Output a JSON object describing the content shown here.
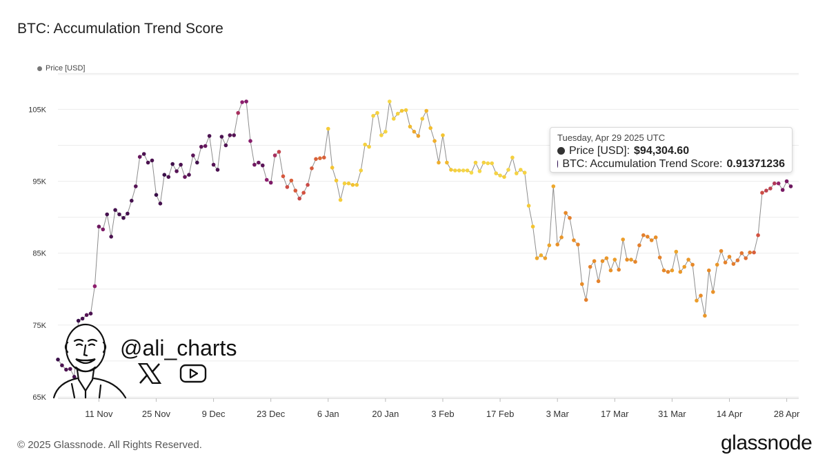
{
  "title": "BTC: Accumulation Trend Score",
  "legend": {
    "label": "Price [USD]",
    "color": "#777777"
  },
  "tooltip": {
    "date": "Tuesday, Apr 29 2025 UTC",
    "price_label": "Price [USD]:",
    "price_value": "$94,304.60",
    "price_color": "#333333",
    "score_label": "BTC: Accumulation Trend Score:",
    "score_value": "0.91371236",
    "score_color": "#2a0b4e"
  },
  "watermark": {
    "handle": "@ali_charts",
    "icons": [
      "x-logo-icon",
      "youtube-icon",
      "avatar-sketch"
    ]
  },
  "footer": {
    "copyright": "© 2025 Glassnode. All Rights Reserved.",
    "brand": "glassnode"
  },
  "colors": {
    "line": "#8c8c8c",
    "grid": "#ececec"
  },
  "chart_data": {
    "type": "scatter",
    "title": "BTC: Accumulation Trend Score",
    "y_ticks": [
      {
        "value": 65,
        "label": "65K"
      },
      {
        "value": 75,
        "label": "75K"
      },
      {
        "value": 85,
        "label": "85K"
      },
      {
        "value": 95,
        "label": "95K"
      },
      {
        "value": 105,
        "label": "105K"
      }
    ],
    "ylim": [
      65,
      106
    ],
    "x_ticks": [
      "11 Nov",
      "25 Nov",
      "9 Dec",
      "23 Dec",
      "6 Jan",
      "20 Jan",
      "3 Feb",
      "17 Feb",
      "3 Mar",
      "17 Mar",
      "31 Mar",
      "14 Apr",
      "28 Apr"
    ],
    "x_range": [
      "2025-11-01",
      "2025-04-30"
    ],
    "grid": true,
    "legend_position": "top-left",
    "series": [
      {
        "name": "Price [USD]",
        "x": [
          "2024-11-01",
          "2024-11-02",
          "2024-11-03",
          "2024-11-04",
          "2024-11-05",
          "2024-11-06",
          "2024-11-07",
          "2024-11-08",
          "2024-11-09",
          "2024-11-10",
          "2024-11-11",
          "2024-11-12",
          "2024-11-13",
          "2024-11-14",
          "2024-11-15",
          "2024-11-16",
          "2024-11-17",
          "2024-11-18",
          "2024-11-19",
          "2024-11-20",
          "2024-11-21",
          "2024-11-22",
          "2024-11-23",
          "2024-11-24",
          "2024-11-25",
          "2024-11-26",
          "2024-11-27",
          "2024-11-28",
          "2024-11-29",
          "2024-11-30",
          "2024-12-01",
          "2024-12-02",
          "2024-12-03",
          "2024-12-04",
          "2024-12-05",
          "2024-12-06",
          "2024-12-07",
          "2024-12-08",
          "2024-12-09",
          "2024-12-10",
          "2024-12-11",
          "2024-12-12",
          "2024-12-13",
          "2024-12-14",
          "2024-12-15",
          "2024-12-16",
          "2024-12-17",
          "2024-12-18",
          "2024-12-19",
          "2024-12-20",
          "2024-12-21",
          "2024-12-22",
          "2024-12-23",
          "2024-12-24",
          "2024-12-25",
          "2024-12-26",
          "2024-12-27",
          "2024-12-28",
          "2024-12-29",
          "2024-12-30",
          "2024-12-31",
          "2025-01-01",
          "2025-01-02",
          "2025-01-03",
          "2025-01-04",
          "2025-01-05",
          "2025-01-06",
          "2025-01-07",
          "2025-01-08",
          "2025-01-09",
          "2025-01-10",
          "2025-01-11",
          "2025-01-12",
          "2025-01-13",
          "2025-01-14",
          "2025-01-15",
          "2025-01-16",
          "2025-01-17",
          "2025-01-18",
          "2025-01-19",
          "2025-01-20",
          "2025-01-21",
          "2025-01-22",
          "2025-01-23",
          "2025-01-24",
          "2025-01-25",
          "2025-01-26",
          "2025-01-27",
          "2025-01-28",
          "2025-01-29",
          "2025-01-30",
          "2025-01-31",
          "2025-02-01",
          "2025-02-02",
          "2025-02-03",
          "2025-02-04",
          "2025-02-05",
          "2025-02-06",
          "2025-02-07",
          "2025-02-08",
          "2025-02-09",
          "2025-02-10",
          "2025-02-11",
          "2025-02-12",
          "2025-02-13",
          "2025-02-14",
          "2025-02-15",
          "2025-02-16",
          "2025-02-17",
          "2025-02-18",
          "2025-02-19",
          "2025-02-20",
          "2025-02-21",
          "2025-02-22",
          "2025-02-23",
          "2025-02-24",
          "2025-02-25",
          "2025-02-26",
          "2025-02-27",
          "2025-02-28",
          "2025-03-01",
          "2025-03-02",
          "2025-03-03",
          "2025-03-04",
          "2025-03-05",
          "2025-03-06",
          "2025-03-07",
          "2025-03-08",
          "2025-03-09",
          "2025-03-10",
          "2025-03-11",
          "2025-03-12",
          "2025-03-13",
          "2025-03-14",
          "2025-03-15",
          "2025-03-16",
          "2025-03-17",
          "2025-03-18",
          "2025-03-19",
          "2025-03-20",
          "2025-03-21",
          "2025-03-22",
          "2025-03-23",
          "2025-03-24",
          "2025-03-25",
          "2025-03-26",
          "2025-03-27",
          "2025-03-28",
          "2025-03-29",
          "2025-03-30",
          "2025-03-31",
          "2025-04-01",
          "2025-04-02",
          "2025-04-03",
          "2025-04-04",
          "2025-04-05",
          "2025-04-06",
          "2025-04-07",
          "2025-04-08",
          "2025-04-09",
          "2025-04-10",
          "2025-04-11",
          "2025-04-12",
          "2025-04-13",
          "2025-04-14",
          "2025-04-15",
          "2025-04-16",
          "2025-04-17",
          "2025-04-18",
          "2025-04-19",
          "2025-04-20",
          "2025-04-21",
          "2025-04-22",
          "2025-04-23",
          "2025-04-24",
          "2025-04-25",
          "2025-04-26",
          "2025-04-27",
          "2025-04-28",
          "2025-04-29"
        ],
        "y": [
          70.2,
          69.4,
          68.8,
          68.9,
          67.8,
          75.6,
          75.9,
          76.4,
          76.6,
          80.4,
          88.7,
          88.3,
          90.4,
          87.3,
          91.0,
          90.4,
          89.9,
          90.5,
          92.3,
          94.3,
          98.4,
          98.8,
          97.6,
          97.9,
          93.1,
          91.9,
          95.9,
          95.6,
          97.4,
          96.4,
          97.3,
          95.6,
          95.9,
          98.6,
          97.6,
          99.8,
          99.9,
          101.3,
          97.3,
          96.6,
          101.2,
          100.0,
          101.4,
          101.4,
          104.5,
          106.0,
          106.1,
          100.6,
          97.3,
          97.6,
          97.2,
          95.2,
          94.8,
          98.6,
          99.1,
          95.7,
          94.2,
          95.1,
          93.7,
          92.6,
          93.4,
          94.5,
          96.8,
          98.1,
          98.2,
          98.3,
          102.3,
          96.9,
          95.1,
          92.4,
          94.7,
          94.7,
          94.5,
          94.5,
          96.5,
          100.1,
          99.8,
          104.1,
          104.5,
          101.4,
          101.9,
          106.1,
          103.7,
          104.4,
          104.8,
          104.9,
          102.6,
          101.9,
          101.3,
          103.7,
          104.8,
          102.4,
          100.6,
          97.6,
          101.4,
          97.6,
          96.6,
          96.5,
          96.5,
          96.5,
          96.5,
          96.2,
          97.6,
          96.4,
          97.6,
          97.5,
          97.5,
          96.1,
          95.8,
          95.6,
          96.6,
          98.3,
          96.1,
          96.6,
          96.2,
          91.6,
          88.7,
          84.3,
          84.7,
          84.3,
          86.1,
          94.3,
          86.2,
          87.2,
          90.6,
          89.9,
          86.8,
          86.2,
          80.7,
          78.5,
          83.1,
          83.9,
          81.1,
          83.9,
          84.3,
          82.6,
          84.1,
          82.7,
          86.9,
          84.1,
          84.1,
          83.8,
          86.1,
          87.5,
          87.3,
          86.8,
          87.2,
          84.4,
          82.6,
          82.4,
          82.6,
          85.2,
          82.4,
          83.1,
          84.1,
          83.4,
          78.4,
          79.1,
          76.3,
          82.6,
          79.6,
          83.4,
          85.3,
          83.7,
          84.5,
          83.5,
          84.0,
          85.0,
          84.3,
          85.1,
          85.1,
          87.5,
          93.4,
          93.7,
          94.0,
          94.7,
          94.7,
          93.8,
          95.0,
          94.3
        ],
        "score": [
          0.95,
          0.92,
          0.92,
          0.91,
          0.93,
          0.95,
          0.93,
          0.9,
          0.92,
          0.8,
          0.86,
          0.83,
          0.93,
          0.92,
          0.93,
          0.93,
          0.94,
          0.93,
          0.93,
          0.9,
          0.87,
          0.92,
          0.92,
          0.92,
          0.95,
          0.93,
          0.95,
          0.92,
          0.94,
          0.9,
          0.92,
          0.87,
          0.91,
          0.89,
          0.94,
          0.89,
          0.87,
          0.92,
          0.9,
          0.92,
          0.92,
          0.91,
          0.9,
          0.9,
          0.73,
          0.8,
          0.82,
          0.81,
          0.85,
          0.87,
          0.89,
          0.8,
          0.83,
          0.73,
          0.65,
          0.58,
          0.62,
          0.55,
          0.57,
          0.64,
          0.6,
          0.63,
          0.57,
          0.55,
          0.51,
          0.55,
          0.16,
          0.2,
          0.18,
          0.15,
          0.13,
          0.16,
          0.21,
          0.17,
          0.12,
          0.13,
          0.14,
          0.12,
          0.13,
          0.12,
          0.11,
          0.09,
          0.13,
          0.13,
          0.18,
          0.16,
          0.23,
          0.3,
          0.32,
          0.16,
          0.25,
          0.22,
          0.27,
          0.28,
          0.2,
          0.24,
          0.17,
          0.13,
          0.12,
          0.1,
          0.12,
          0.08,
          0.13,
          0.1,
          0.12,
          0.1,
          0.12,
          0.12,
          0.1,
          0.14,
          0.1,
          0.14,
          0.12,
          0.11,
          0.12,
          0.16,
          0.2,
          0.3,
          0.28,
          0.33,
          0.31,
          0.3,
          0.38,
          0.36,
          0.41,
          0.44,
          0.39,
          0.42,
          0.4,
          0.44,
          0.43,
          0.4,
          0.43,
          0.38,
          0.36,
          0.38,
          0.34,
          0.42,
          0.34,
          0.39,
          0.35,
          0.42,
          0.44,
          0.44,
          0.42,
          0.4,
          0.39,
          0.43,
          0.41,
          0.42,
          0.34,
          0.31,
          0.36,
          0.34,
          0.36,
          0.41,
          0.34,
          0.4,
          0.36,
          0.4,
          0.38,
          0.36,
          0.41,
          0.43,
          0.4,
          0.45,
          0.47,
          0.48,
          0.5,
          0.46,
          0.56,
          0.6,
          0.62,
          0.66,
          0.66,
          0.7,
          0.78,
          0.84,
          0.84,
          0.86,
          0.91,
          0.87,
          0.92,
          0.914
        ]
      }
    ]
  }
}
